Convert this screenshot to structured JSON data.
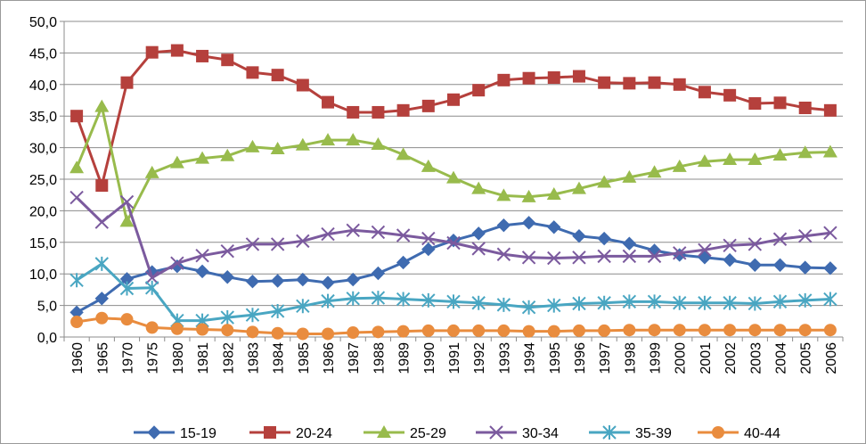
{
  "chart_data": {
    "type": "line",
    "title": "",
    "xlabel": "",
    "ylabel": "",
    "ylim": [
      0,
      50
    ],
    "y_ticks": [
      "0,0",
      "5,0",
      "10,0",
      "15,0",
      "20,0",
      "25,0",
      "30,0",
      "35,0",
      "40,0",
      "45,0",
      "50,0"
    ],
    "categories": [
      "1960",
      "1965",
      "1970",
      "1975",
      "1980",
      "1981",
      "1982",
      "1983",
      "1984",
      "1985",
      "1986",
      "1987",
      "1988",
      "1989",
      "1990",
      "1991",
      "1992",
      "1993",
      "1994",
      "1995",
      "1996",
      "1997",
      "1998",
      "1999",
      "2000",
      "2001",
      "2002",
      "2003",
      "2004",
      "2005",
      "2006"
    ],
    "grid": "horizontal",
    "legend": "bottom",
    "series": [
      {
        "name": "15-19",
        "color": "#3f6bb0",
        "marker": "diamond",
        "values": [
          3.9,
          6.1,
          9.2,
          10.3,
          11.2,
          10.4,
          9.5,
          8.8,
          8.9,
          9.1,
          8.6,
          9.1,
          10.1,
          11.8,
          13.9,
          15.3,
          16.4,
          17.7,
          18.1,
          17.4,
          16.0,
          15.6,
          14.8,
          13.7,
          13.0,
          12.6,
          12.2,
          11.4,
          11.4,
          11.0,
          10.9
        ]
      },
      {
        "name": "20-24",
        "color": "#b5403c",
        "marker": "square",
        "values": [
          35.0,
          24.0,
          40.3,
          45.1,
          45.4,
          44.5,
          43.9,
          41.9,
          41.5,
          39.9,
          37.2,
          35.6,
          35.6,
          35.9,
          36.6,
          37.6,
          39.1,
          40.7,
          41.0,
          41.1,
          41.3,
          40.3,
          40.2,
          40.3,
          40.0,
          38.8,
          38.3,
          37.0,
          37.1,
          36.3,
          35.9
        ]
      },
      {
        "name": "25-29",
        "color": "#98bb4c",
        "marker": "triangle",
        "values": [
          26.8,
          36.5,
          18.3,
          26.0,
          27.6,
          28.3,
          28.7,
          30.1,
          29.8,
          30.4,
          31.2,
          31.2,
          30.5,
          28.9,
          27.0,
          25.2,
          23.5,
          22.4,
          22.2,
          22.6,
          23.5,
          24.5,
          25.3,
          26.1,
          27.0,
          27.8,
          28.1,
          28.1,
          28.8,
          29.2,
          29.3
        ]
      },
      {
        "name": "30-34",
        "color": "#7b5a9e",
        "marker": "x",
        "values": [
          22.1,
          18.2,
          21.4,
          9.4,
          11.7,
          12.9,
          13.6,
          14.7,
          14.7,
          15.2,
          16.3,
          16.9,
          16.6,
          16.1,
          15.6,
          14.9,
          14.0,
          13.1,
          12.6,
          12.5,
          12.6,
          12.8,
          12.8,
          12.8,
          13.3,
          13.8,
          14.5,
          14.7,
          15.5,
          16.0,
          16.5
        ]
      },
      {
        "name": "35-39",
        "color": "#49a6c2",
        "marker": "star",
        "values": [
          9.0,
          11.6,
          7.7,
          7.8,
          2.6,
          2.6,
          3.1,
          3.5,
          4.1,
          4.9,
          5.7,
          6.1,
          6.2,
          6.0,
          5.8,
          5.6,
          5.4,
          5.1,
          4.7,
          5.0,
          5.3,
          5.4,
          5.6,
          5.6,
          5.4,
          5.4,
          5.4,
          5.3,
          5.6,
          5.8,
          6.0
        ]
      },
      {
        "name": "40-44",
        "color": "#e98c3e",
        "marker": "circle",
        "values": [
          2.4,
          3.0,
          2.8,
          1.5,
          1.3,
          1.2,
          1.1,
          0.8,
          0.6,
          0.5,
          0.5,
          0.7,
          0.8,
          0.9,
          1.0,
          1.0,
          1.0,
          1.0,
          0.9,
          0.9,
          1.0,
          1.0,
          1.1,
          1.1,
          1.1,
          1.1,
          1.1,
          1.1,
          1.1,
          1.1,
          1.1
        ]
      }
    ]
  }
}
